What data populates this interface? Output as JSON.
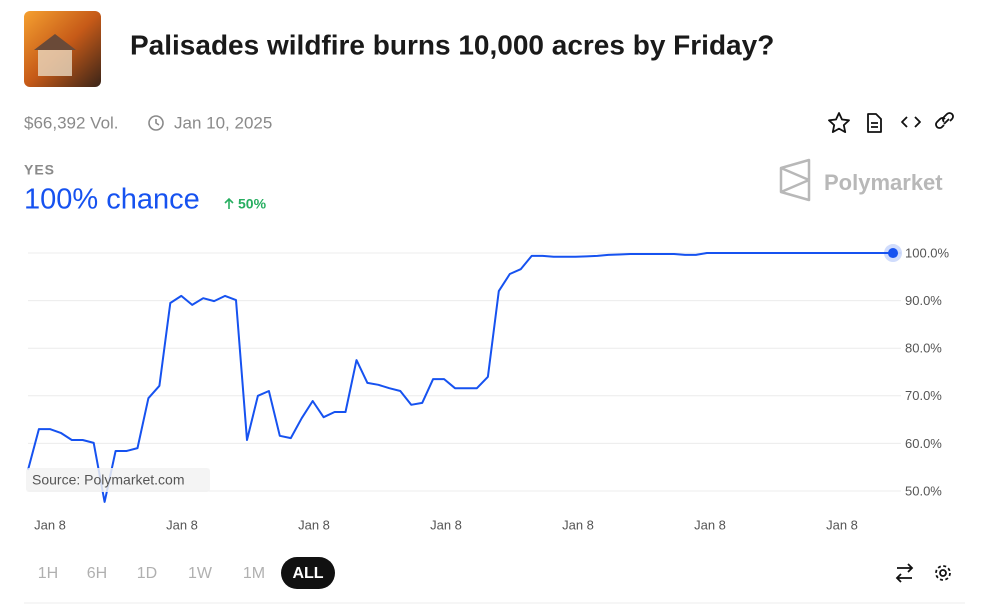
{
  "header": {
    "title": "Palisades wildfire burns 10,000 acres by Friday?",
    "volume": "$66,392 Vol.",
    "date": "Jan 10, 2025"
  },
  "outcome": {
    "label": "YES",
    "chance": "100% chance",
    "change": "50%"
  },
  "brand": "Polymarket",
  "source": "Source: Polymarket.com",
  "ranges": [
    "1H",
    "6H",
    "1D",
    "1W",
    "1M",
    "ALL"
  ],
  "chart_data": {
    "type": "line",
    "color": "#1652f0",
    "x_tick_labels": [
      "Jan 8",
      "Jan 8",
      "Jan 8",
      "Jan 8",
      "Jan 8",
      "Jan 8",
      "Jan 8"
    ],
    "values": [
      54.4,
      63.0,
      63.0,
      62.2,
      60.7,
      60.7,
      60.1,
      47.7,
      58.4,
      58.4,
      59.0,
      69.5,
      72.1,
      89.5,
      91.0,
      89.1,
      90.5,
      89.9,
      91.0,
      90.1,
      60.7,
      70.0,
      71.0,
      61.6,
      61.1,
      65.3,
      68.9,
      65.5,
      66.6,
      66.6,
      77.5,
      72.7,
      72.3,
      71.6,
      71.0,
      68.1,
      68.5,
      73.5,
      73.5,
      71.6,
      71.6,
      71.6,
      74.0,
      92.0,
      95.6,
      96.6,
      99.4,
      99.4,
      99.2,
      99.2,
      99.2,
      99.3,
      99.4,
      99.6,
      99.7,
      99.8,
      99.8,
      99.8,
      99.8,
      99.8,
      99.6,
      99.6,
      100,
      100,
      100,
      100,
      100,
      100,
      100,
      100,
      100,
      100,
      100,
      100,
      100,
      100,
      100,
      100,
      100,
      100
    ],
    "ylim": [
      46,
      104
    ],
    "yticks": [
      {
        "value": 50,
        "label": "50.0%"
      },
      {
        "value": 60,
        "label": "60.0%"
      },
      {
        "value": 70,
        "label": "70.0%"
      },
      {
        "value": 80,
        "label": "80.0%"
      },
      {
        "value": 90,
        "label": "90.0%"
      },
      {
        "value": 100,
        "label": "100.0%"
      }
    ],
    "grid": true
  }
}
